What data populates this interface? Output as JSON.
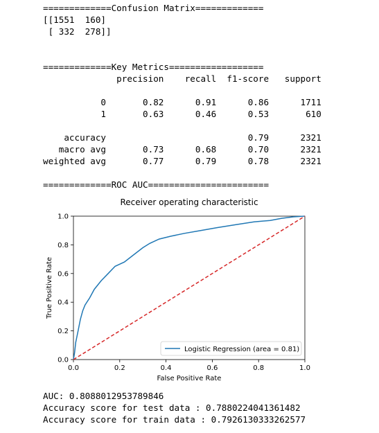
{
  "output": {
    "confusion_header": "=============Confusion Matrix=============",
    "confusion_rows": [
      "[[1551  160]",
      " [ 332  278]]"
    ],
    "metrics_header": "=============Key Metrics==================",
    "report_rows": [
      "              precision    recall  f1-score   support",
      "",
      "           0       0.82      0.91      0.86      1711",
      "           1       0.63      0.46      0.53       610",
      "",
      "    accuracy                           0.79      2321",
      "   macro avg       0.73      0.68      0.70      2321",
      "weighted avg       0.77      0.79      0.78      2321"
    ],
    "roc_header": "=============ROC AUC=======================",
    "auc_line": "AUC: 0.8088012953789846",
    "test_line": "Accuracy score for test data : 0.7880224041361482",
    "train_line": "Accuracy score for train data : 0.7926130333262577"
  },
  "chart_data": {
    "type": "line",
    "title": "Receiver operating characteristic",
    "xlabel": "False Positive Rate",
    "ylabel": "True Positive Rate",
    "xlim": [
      0.0,
      1.0
    ],
    "ylim": [
      0.0,
      1.0
    ],
    "xticks": [
      "0.0",
      "0.2",
      "0.4",
      "0.6",
      "0.8",
      "1.0"
    ],
    "yticks": [
      "0.0",
      "0.2",
      "0.4",
      "0.6",
      "0.8",
      "1.0"
    ],
    "grid": false,
    "legend_position": "lower right",
    "series": [
      {
        "name": "Logistic Regression (area = 0.81)",
        "color": "#1f77b4",
        "style": "solid",
        "x": [
          0.0,
          0.005,
          0.01,
          0.02,
          0.03,
          0.04,
          0.05,
          0.07,
          0.09,
          0.12,
          0.15,
          0.18,
          0.22,
          0.26,
          0.3,
          0.33,
          0.37,
          0.42,
          0.48,
          0.55,
          0.62,
          0.7,
          0.78,
          0.85,
          0.9,
          0.95,
          1.0
        ],
        "y": [
          0.0,
          0.05,
          0.12,
          0.2,
          0.28,
          0.34,
          0.38,
          0.43,
          0.49,
          0.55,
          0.6,
          0.65,
          0.68,
          0.73,
          0.78,
          0.81,
          0.84,
          0.86,
          0.88,
          0.9,
          0.92,
          0.94,
          0.96,
          0.97,
          0.985,
          0.995,
          1.0
        ]
      },
      {
        "name": "",
        "color": "#d62728",
        "style": "dashed",
        "x": [
          0.0,
          1.0
        ],
        "y": [
          0.0,
          1.0
        ]
      }
    ]
  }
}
